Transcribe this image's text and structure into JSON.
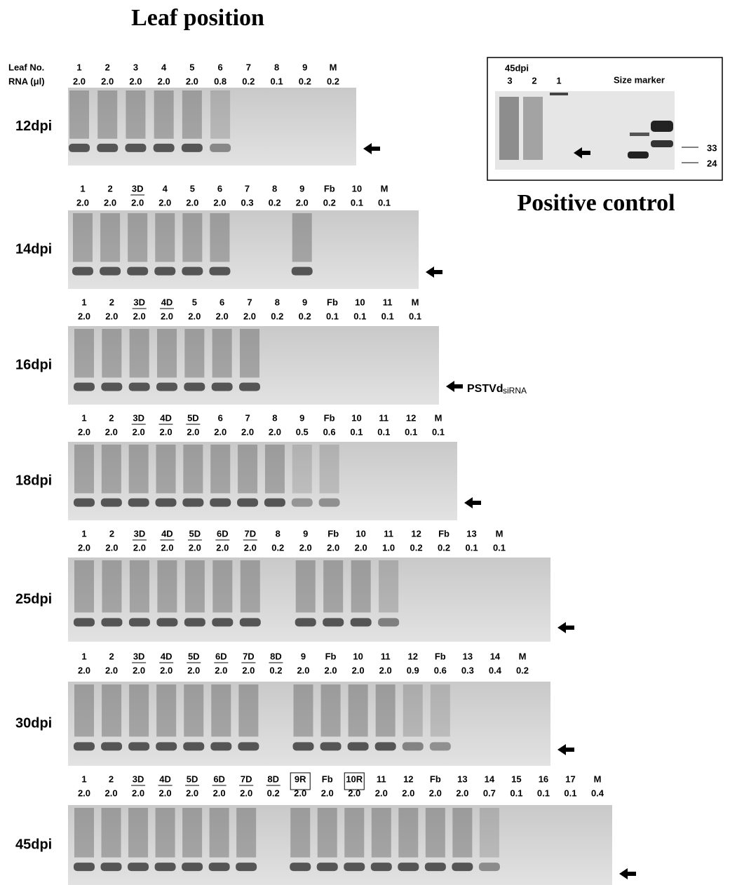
{
  "title": "Leaf position",
  "row_headers": {
    "leaf": "Leaf No.",
    "rna": "RNA (μl)"
  },
  "panels": [
    {
      "label": "12dpi",
      "lanes": [
        "1",
        "2",
        "3",
        "4",
        "5",
        "6",
        "7",
        "8",
        "9",
        "M"
      ],
      "rna": [
        "2.0",
        "2.0",
        "2.0",
        "2.0",
        "2.0",
        "0.8",
        "0.2",
        "0.1",
        "0.2",
        "0.2"
      ]
    },
    {
      "label": "14dpi",
      "lanes": [
        "1",
        "2",
        "3D",
        "4",
        "5",
        "6",
        "7",
        "8",
        "9",
        "Fb",
        "10",
        "M"
      ],
      "rna": [
        "2.0",
        "2.0",
        "2.0",
        "2.0",
        "2.0",
        "2.0",
        "0.3",
        "0.2",
        "2.0",
        "0.2",
        "0.1",
        "0.1"
      ]
    },
    {
      "label": "16dpi",
      "lanes": [
        "1",
        "2",
        "3D",
        "4D",
        "5",
        "6",
        "7",
        "8",
        "9",
        "Fb",
        "10",
        "11",
        "M"
      ],
      "rna": [
        "2.0",
        "2.0",
        "2.0",
        "2.0",
        "2.0",
        "2.0",
        "2.0",
        "0.2",
        "0.2",
        "0.1",
        "0.1",
        "0.1",
        "0.1"
      ]
    },
    {
      "label": "18dpi",
      "lanes": [
        "1",
        "2",
        "3D",
        "4D",
        "5D",
        "6",
        "7",
        "8",
        "9",
        "Fb",
        "10",
        "11",
        "12",
        "M"
      ],
      "rna": [
        "2.0",
        "2.0",
        "2.0",
        "2.0",
        "2.0",
        "2.0",
        "2.0",
        "2.0",
        "0.5",
        "0.6",
        "0.1",
        "0.1",
        "0.1",
        "0.1"
      ]
    },
    {
      "label": "25dpi",
      "lanes": [
        "1",
        "2",
        "3D",
        "4D",
        "5D",
        "6D",
        "7D",
        "8",
        "9",
        "Fb",
        "10",
        "11",
        "12",
        "Fb",
        "13",
        "M"
      ],
      "rna": [
        "2.0",
        "2.0",
        "2.0",
        "2.0",
        "2.0",
        "2.0",
        "2.0",
        "0.2",
        "2.0",
        "2.0",
        "2.0",
        "1.0",
        "0.2",
        "0.2",
        "0.1",
        "0.1"
      ]
    },
    {
      "label": "30dpi",
      "lanes": [
        "1",
        "2",
        "3D",
        "4D",
        "5D",
        "6D",
        "7D",
        "8D",
        "9",
        "Fb",
        "10",
        "11",
        "12",
        "Fb",
        "13",
        "14",
        "M"
      ],
      "rna": [
        "2.0",
        "2.0",
        "2.0",
        "2.0",
        "2.0",
        "2.0",
        "2.0",
        "0.2",
        "2.0",
        "2.0",
        "2.0",
        "2.0",
        "0.9",
        "0.6",
        "0.3",
        "0.4",
        "0.2"
      ]
    },
    {
      "label": "45dpi",
      "lanes": [
        "1",
        "2",
        "3D",
        "4D",
        "5D",
        "6D",
        "7D",
        "8D",
        "9R",
        "Fb",
        "10R",
        "11",
        "12",
        "Fb",
        "13",
        "14",
        "15",
        "16",
        "17",
        "M"
      ],
      "rna": [
        "2.0",
        "2.0",
        "2.0",
        "2.0",
        "2.0",
        "2.0",
        "2.0",
        "0.2",
        "2.0",
        "2.0",
        "2.0",
        "2.0",
        "2.0",
        "2.0",
        "2.0",
        "0.7",
        "0.1",
        "0.1",
        "0.1",
        "0.4"
      ]
    }
  ],
  "annotation": {
    "name": "PSTVd",
    "suffix": "siRNA"
  },
  "positive_control": {
    "title": "Positive control",
    "time": "45dpi",
    "lanes": [
      "3",
      "2",
      "1"
    ],
    "size_marker": "Size marker",
    "sizes": [
      "33",
      "24"
    ]
  }
}
